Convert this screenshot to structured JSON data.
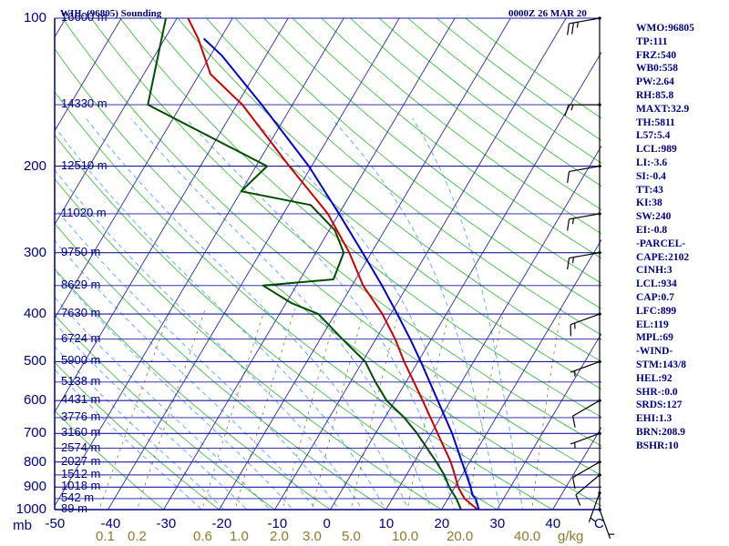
{
  "header": {
    "station": "WIIL (96805) Sounding",
    "time": "0000Z 26 MAR 20"
  },
  "indices": [
    "WMO:96805",
    "TP:111",
    "FRZ:540",
    "WB0:558",
    "PW:2.64",
    "RH:85.8",
    "MAXT:32.9",
    "TH:5811",
    "L57:5.4",
    "LCL:989",
    "LI:-3.6",
    "SI:-0.4",
    "TT:43",
    "KI:38",
    "SW:240",
    "EI:-0.8",
    "-PARCEL-",
    "CAPE:2102",
    "CINH:3",
    "LCL:934",
    "CAP:0.7",
    "LFC:899",
    "EL:119",
    "MPL:69",
    "-WIND-",
    "STM:143/8",
    "HEL:92",
    "SHR-:0.0",
    "SRDS:127",
    "EHI:1.3",
    "BRN:208.9",
    "BSHR:10"
  ],
  "colors": {
    "axis": "#000080",
    "isobar": "#1a1aa0",
    "isotherm": "#2a2aa0",
    "dry_adiabat": "#2eb82e",
    "moist_adiabat": "#5aa0ff",
    "mixing_ratio": "#8c7a2a",
    "temperature": "#cc0000",
    "dewpoint": "#004d00",
    "parcel": "#0000cc",
    "barb": "#000000"
  },
  "chart_data": {
    "type": "skew-t",
    "pressure_unit": "mb",
    "temperature_unit": "C",
    "mixing_ratio_unit": "g/kg",
    "pressure_range": [
      100,
      1000
    ],
    "temperature_ticks": [
      -50,
      -40,
      -30,
      -20,
      -10,
      0,
      10,
      20,
      30,
      40
    ],
    "temperature_tick_labels": [
      "-50",
      "-40",
      "-30",
      "-20",
      "-10",
      "0",
      "10",
      "20",
      "30",
      "40",
      "C"
    ],
    "pressure_ticks": [
      100,
      200,
      300,
      400,
      500,
      600,
      700,
      800,
      900,
      1000
    ],
    "pressure_tick_labels": [
      "100",
      "200",
      "300",
      "400",
      "500",
      "600",
      "700",
      "800",
      "900",
      "1000"
    ],
    "mixing_ratio_ticks": [
      0.1,
      0.2,
      0.6,
      1.0,
      2.0,
      3.0,
      5.0,
      10.0,
      20.0,
      40.0
    ],
    "mixing_ratio_labels": [
      "0.1",
      "0.2",
      "0.6",
      "1.0",
      "2.0",
      "3.0",
      "5.0",
      "10.0",
      "20.0",
      "40.0"
    ],
    "height_levels": [
      {
        "p": 100,
        "label": "16600 m"
      },
      {
        "p": 150,
        "label": "14330 m"
      },
      {
        "p": 200,
        "label": "12510 m"
      },
      {
        "p": 250,
        "label": "11020 m"
      },
      {
        "p": 300,
        "label": "9750 m"
      },
      {
        "p": 350,
        "label": "8629 m"
      },
      {
        "p": 400,
        "label": "7630 m"
      },
      {
        "p": 450,
        "label": "6724 m"
      },
      {
        "p": 500,
        "label": "5900 m"
      },
      {
        "p": 550,
        "label": "5138 m"
      },
      {
        "p": 600,
        "label": "4431 m"
      },
      {
        "p": 650,
        "label": "3776 m"
      },
      {
        "p": 700,
        "label": "3160 m"
      },
      {
        "p": 750,
        "label": "2574 m"
      },
      {
        "p": 800,
        "label": "2027 m"
      },
      {
        "p": 850,
        "label": "1512 m"
      },
      {
        "p": 900,
        "label": "1018 m"
      },
      {
        "p": 950,
        "label": "542 m"
      },
      {
        "p": 1000,
        "label": "89 m"
      }
    ],
    "temperature_profile": [
      [
        1008,
        27.0
      ],
      [
        1000,
        26.5
      ],
      [
        950,
        23.0
      ],
      [
        925,
        21.8
      ],
      [
        900,
        20.6
      ],
      [
        850,
        18.7
      ],
      [
        800,
        16.6
      ],
      [
        700,
        11.2
      ],
      [
        600,
        5.0
      ],
      [
        500,
        -2.5
      ],
      [
        450,
        -6.5
      ],
      [
        400,
        -11.5
      ],
      [
        350,
        -18.0
      ],
      [
        300,
        -24.0
      ],
      [
        250,
        -32.0
      ],
      [
        200,
        -44.0
      ],
      [
        150,
        -59.0
      ],
      [
        130,
        -68.0
      ],
      [
        110,
        -74.0
      ],
      [
        100,
        -78.0
      ]
    ],
    "dewpoint_profile": [
      [
        1008,
        23.7
      ],
      [
        1000,
        23.5
      ],
      [
        950,
        21.5
      ],
      [
        900,
        19.0
      ],
      [
        850,
        16.8
      ],
      [
        800,
        14.0
      ],
      [
        700,
        7.5
      ],
      [
        650,
        3.5
      ],
      [
        600,
        -1.5
      ],
      [
        550,
        -5.5
      ],
      [
        500,
        -9.5
      ],
      [
        450,
        -16.0
      ],
      [
        400,
        -23.0
      ],
      [
        380,
        -29.0
      ],
      [
        350,
        -36.0
      ],
      [
        340,
        -24.0
      ],
      [
        300,
        -25.0
      ],
      [
        270,
        -29.0
      ],
      [
        240,
        -36.0
      ],
      [
        225,
        -50.0
      ],
      [
        200,
        -48.0
      ],
      [
        150,
        -76.0
      ],
      [
        100,
        -82.0
      ]
    ],
    "parcel_profile": [
      [
        1008,
        27.0
      ],
      [
        950,
        25.0
      ],
      [
        934,
        24.0
      ],
      [
        899,
        22.8
      ],
      [
        850,
        20.8
      ],
      [
        800,
        18.6
      ],
      [
        700,
        13.8
      ],
      [
        600,
        7.7
      ],
      [
        500,
        0.5
      ],
      [
        450,
        -3.8
      ],
      [
        400,
        -8.8
      ],
      [
        350,
        -14.6
      ],
      [
        300,
        -21.6
      ],
      [
        250,
        -30.0
      ],
      [
        200,
        -40.5
      ],
      [
        150,
        -55.5
      ],
      [
        119,
        -68.0
      ],
      [
        110,
        -73.0
      ]
    ],
    "wind_barbs": [
      {
        "p": 1000,
        "dir": 160,
        "spd": 5
      },
      {
        "p": 925,
        "dir": 200,
        "spd": 5
      },
      {
        "p": 850,
        "dir": 230,
        "spd": 10
      },
      {
        "p": 800,
        "dir": 240,
        "spd": 10
      },
      {
        "p": 700,
        "dir": 250,
        "spd": 5
      },
      {
        "p": 600,
        "dir": 240,
        "spd": 10
      },
      {
        "p": 500,
        "dir": 250,
        "spd": 5
      },
      {
        "p": 400,
        "dir": 250,
        "spd": 15
      },
      {
        "p": 300,
        "dir": 260,
        "spd": 15
      },
      {
        "p": 250,
        "dir": 260,
        "spd": 15
      },
      {
        "p": 200,
        "dir": 260,
        "spd": 10
      },
      {
        "p": 150,
        "dir": 270,
        "spd": 15
      },
      {
        "p": 100,
        "dir": 260,
        "spd": 25
      }
    ]
  }
}
